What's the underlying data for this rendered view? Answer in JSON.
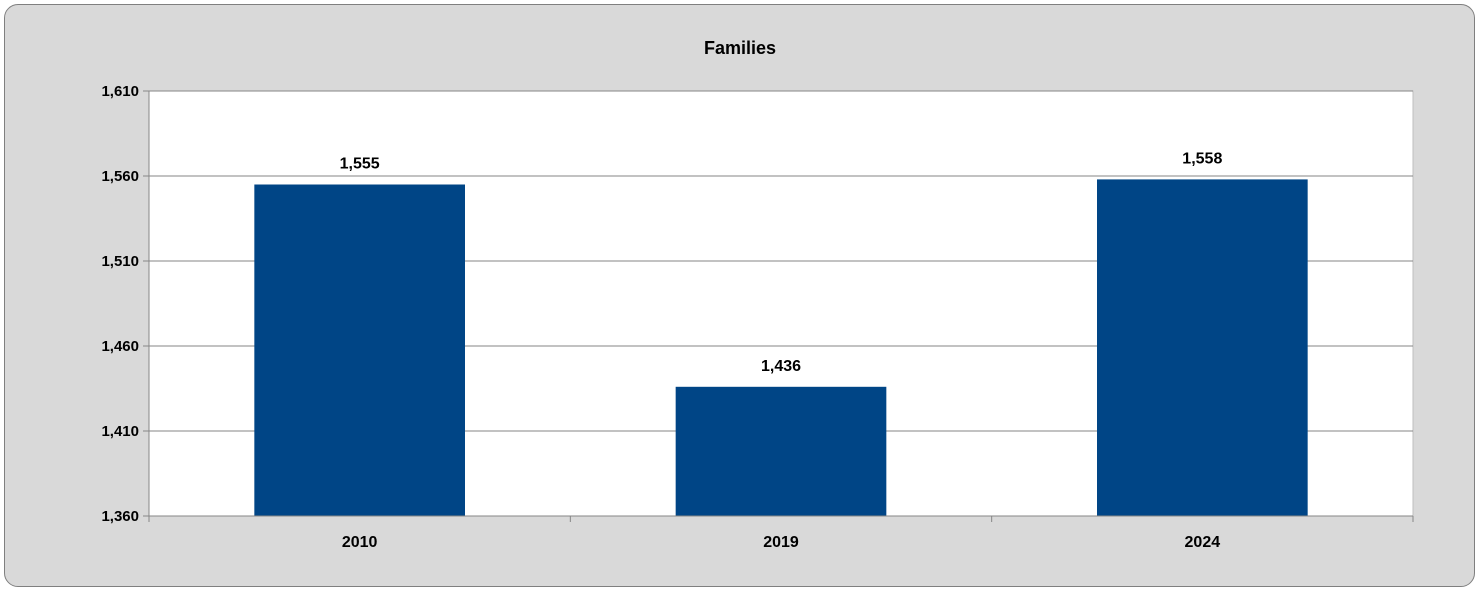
{
  "colors": {
    "frame_background": "#d9d9d9",
    "plot_background": "#ffffff",
    "bar": "#004586",
    "gridline": "#868686"
  },
  "chart_data": {
    "type": "bar",
    "title": "Families",
    "xlabel": "",
    "ylabel": "",
    "categories": [
      "2010",
      "2019",
      "2024"
    ],
    "values": [
      1555,
      1436,
      1558
    ],
    "data_labels": [
      "1,555",
      "1,436",
      "1,558"
    ],
    "ylim": [
      1360,
      1610
    ],
    "yticks": [
      1360,
      1410,
      1460,
      1510,
      1560,
      1610
    ],
    "ytick_labels": [
      "1,360",
      "1,410",
      "1,460",
      "1,510",
      "1,560",
      "1,610"
    ],
    "grid": true,
    "legend": "none"
  }
}
